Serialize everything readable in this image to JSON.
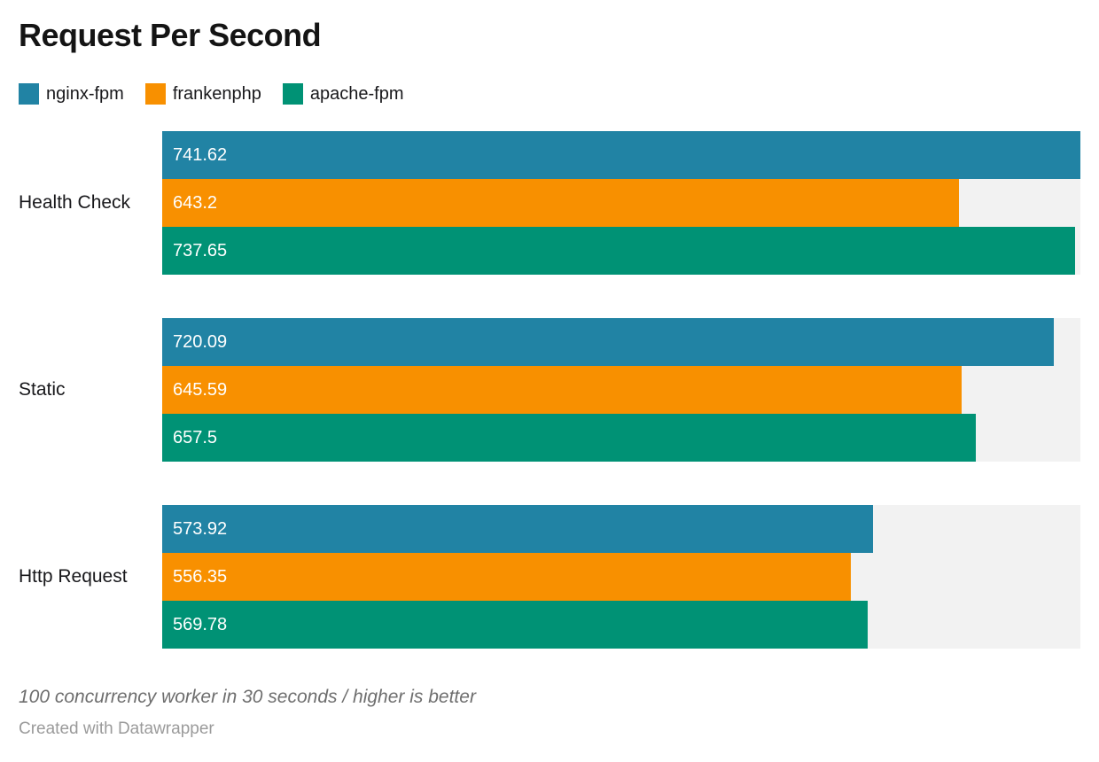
{
  "title": "Request Per Second",
  "notes": "100 concurrency worker in 30 seconds / higher is better",
  "credit": "Created with Datawrapper",
  "chart_data": {
    "type": "bar",
    "orientation": "horizontal",
    "title": "Request Per Second",
    "categories": [
      "Health Check",
      "Static",
      "Http Request"
    ],
    "series": [
      {
        "name": "nginx-fpm",
        "color": "#2183a4",
        "values": [
          741.62,
          720.09,
          573.92
        ]
      },
      {
        "name": "frankenphp",
        "color": "#f89000",
        "values": [
          643.2,
          645.59,
          556.35
        ]
      },
      {
        "name": "apache-fpm",
        "color": "#009275",
        "values": [
          737.65,
          657.5,
          569.78
        ]
      }
    ],
    "xlim": [
      0,
      741.62
    ],
    "value_labels": "inside-start",
    "track_color": "#f2f2f2",
    "legend_position": "top",
    "grid": false
  }
}
